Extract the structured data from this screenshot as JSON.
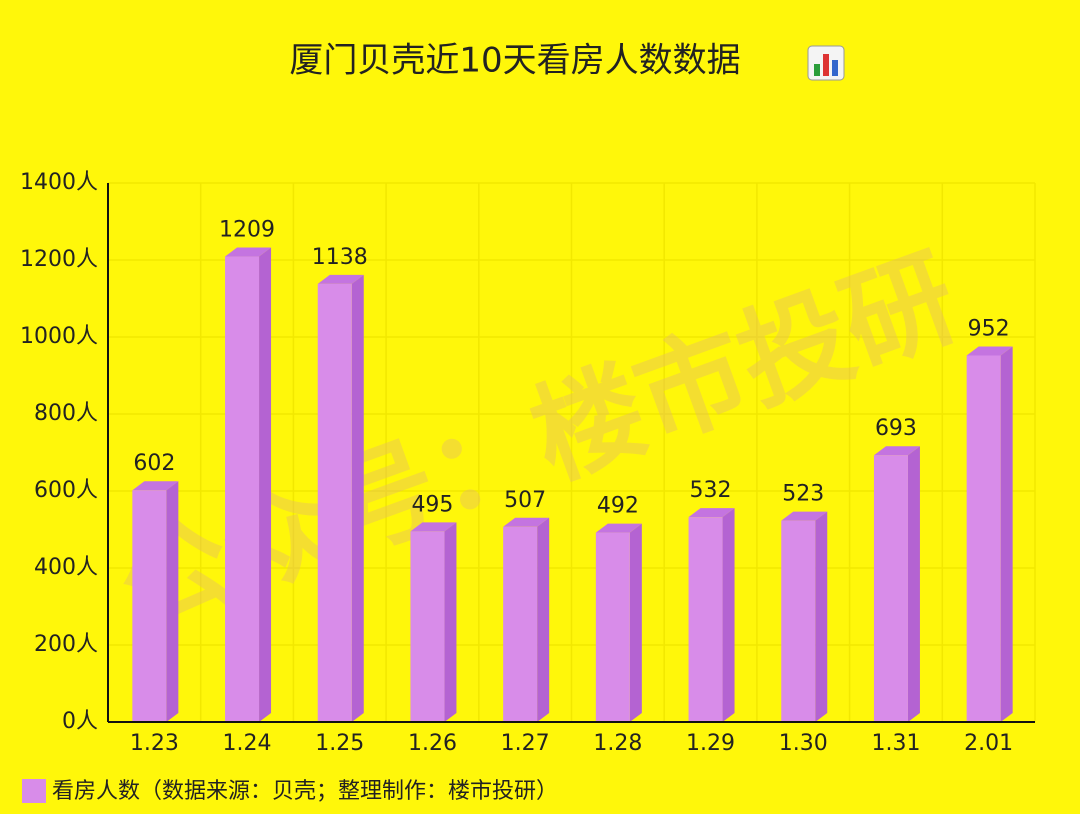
{
  "chart_data": {
    "type": "bar3d",
    "title": "厦门贝壳近10天看房人数数据",
    "categories": [
      "1.23",
      "1.24",
      "1.25",
      "1.26",
      "1.27",
      "1.28",
      "1.29",
      "1.30",
      "1.31",
      "2.01"
    ],
    "series": [
      {
        "name": "看房人数（数据来源：贝壳；整理制作：楼市投研）",
        "color": "#d88ce9",
        "values": [
          602,
          1209,
          1138,
          495,
          507,
          492,
          532,
          523,
          693,
          952
        ]
      }
    ],
    "ylim": [
      0,
      1400
    ],
    "yticks": [
      {
        "value": 0,
        "label": "0人"
      },
      {
        "value": 200,
        "label": "200人"
      },
      {
        "value": 400,
        "label": "400人"
      },
      {
        "value": 600,
        "label": "600人"
      },
      {
        "value": 800,
        "label": "800人"
      },
      {
        "value": 1000,
        "label": "1000人"
      },
      {
        "value": 1200,
        "label": "1200人"
      },
      {
        "value": 1400,
        "label": "1400人"
      }
    ],
    "grid": true,
    "legend": "bottom-left",
    "watermark": "公众号：楼市投研"
  }
}
